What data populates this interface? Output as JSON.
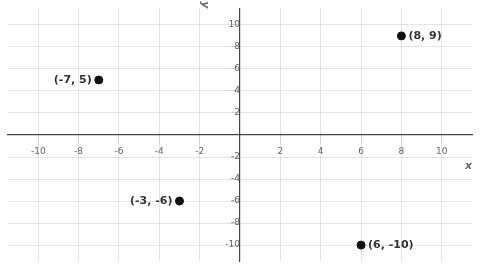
{
  "chart_data": {
    "type": "scatter",
    "xlabel": "x",
    "ylabel": "y",
    "x": [
      -7,
      8,
      -3,
      6
    ],
    "values": [
      5,
      9,
      -6,
      -10
    ],
    "color": "#111111",
    "annotations": [
      {
        "text": "(-7, 5)",
        "x": -7,
        "y": 5
      },
      {
        "text": "(8, 9)",
        "x": 8,
        "y": 9
      },
      {
        "text": "(-3, -6)",
        "x": -3,
        "y": -6
      },
      {
        "text": "(6, -10)",
        "x": 6,
        "y": -10
      }
    ],
    "xlim": [
      -11.5,
      11.5
    ],
    "ylim": [
      -11.5,
      11.5
    ],
    "xticks": [
      -10,
      -8,
      -6,
      -4,
      -2,
      2,
      4,
      6,
      8,
      10
    ],
    "yticks": [
      -10,
      -8,
      -6,
      -4,
      -2,
      2,
      4,
      6,
      8,
      10
    ],
    "grid": true
  }
}
